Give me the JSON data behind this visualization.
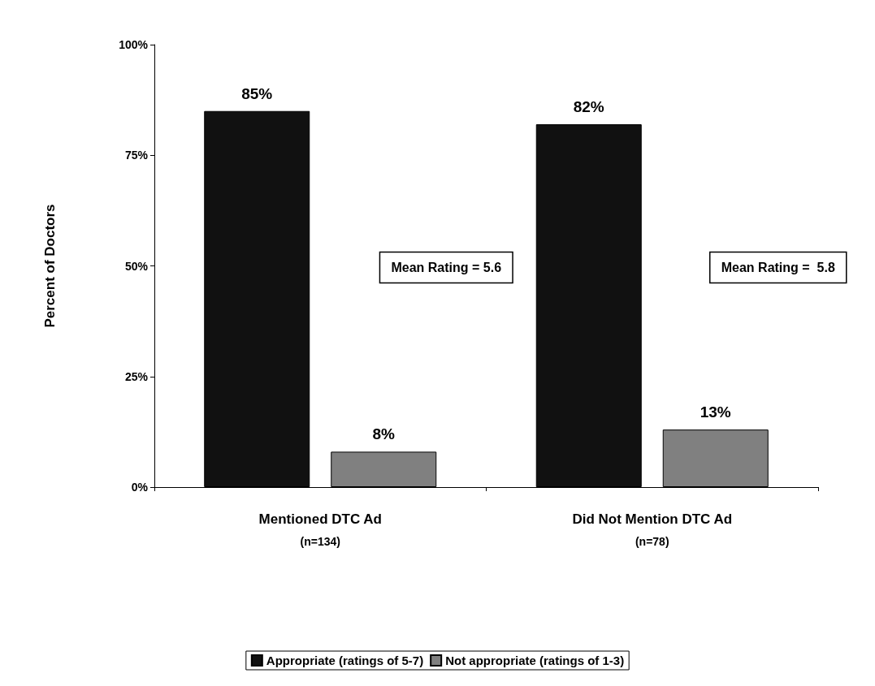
{
  "chart_data": {
    "type": "bar",
    "ylabel": "Percent of Doctors",
    "categories": [
      "Mentioned DTC Ad\n(n=134)",
      "Did Not Mention DTC Ad\n(n=78)"
    ],
    "series": [
      {
        "name": "Appropriate (ratings of 5-7)",
        "color": "#111111",
        "values": [
          85,
          82
        ],
        "value_labels": [
          "85%",
          "82%"
        ]
      },
      {
        "name": "Not appropriate (ratings of 1-3)",
        "color": "#808080",
        "values": [
          8,
          13
        ],
        "value_labels": [
          "8%",
          "13%"
        ]
      }
    ],
    "ylim": [
      0,
      100
    ],
    "yticks": [
      {
        "value": 0,
        "label": "0%"
      },
      {
        "value": 25,
        "label": "25%"
      },
      {
        "value": 50,
        "label": "50%"
      },
      {
        "value": 75,
        "label": "75%"
      },
      {
        "value": 100,
        "label": "100%"
      }
    ],
    "annotations": [
      "Mean Rating = 5.6",
      "Mean Rating =  5.8"
    ],
    "grid": false,
    "legend": "bottom"
  }
}
